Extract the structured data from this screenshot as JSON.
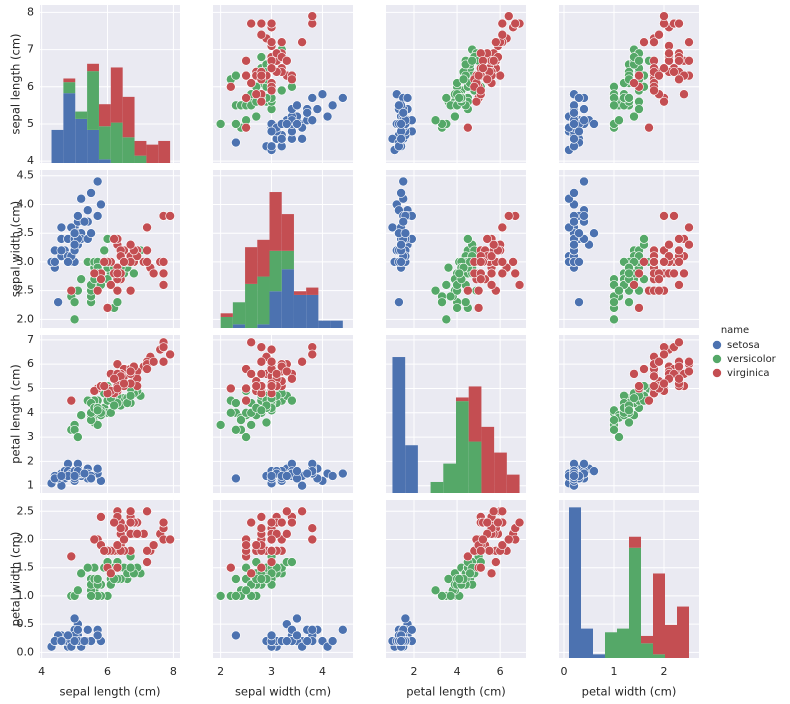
{
  "chart_data": {
    "type": "pairplot",
    "grid": true,
    "legend_title": "name",
    "hist_ylim": [
      0,
      43
    ],
    "axes": [
      {
        "label": "sepal length (cm)",
        "xlim": [
          3.95,
          8.2
        ],
        "ylim": [
          3.95,
          8.2
        ],
        "xticks": [
          4,
          6,
          8
        ],
        "yticks": [
          4,
          5,
          6,
          7,
          8
        ],
        "bins": [
          4.3,
          4.66,
          5.02,
          5.38,
          5.74,
          6.1,
          6.46,
          6.82,
          7.18,
          7.54,
          7.9
        ]
      },
      {
        "label": "sepal width (cm)",
        "xlim": [
          1.85,
          4.6
        ],
        "ylim": [
          1.85,
          4.6
        ],
        "xticks": [
          2,
          3,
          4
        ],
        "yticks": [
          {
            "value": 2,
            "label": "2.0"
          },
          2.5,
          {
            "value": 3,
            "label": "3.0"
          },
          3.5,
          {
            "value": 4,
            "label": "4.0"
          },
          4.5
        ],
        "bins": [
          2.0,
          2.24,
          2.48,
          2.72,
          2.96,
          3.2,
          3.44,
          3.68,
          3.92,
          4.16,
          4.4
        ]
      },
      {
        "label": "petal length (cm)",
        "xlim": [
          0.7,
          7.2
        ],
        "ylim": [
          0.7,
          7.2
        ],
        "xticks": [
          2,
          4,
          6
        ],
        "yticks": [
          1,
          2,
          3,
          4,
          5,
          6,
          7
        ],
        "bins": [
          1.0,
          1.59,
          2.18,
          2.77,
          3.36,
          3.95,
          4.54,
          5.13,
          5.72,
          6.31,
          6.9
        ]
      },
      {
        "label": "petal width (cm)",
        "xlim": [
          -0.1,
          2.7
        ],
        "ylim": [
          -0.1,
          2.7
        ],
        "xticks": [
          0,
          1,
          2
        ],
        "yticks": [
          {
            "value": 0,
            "label": "0.0"
          },
          0.5,
          {
            "value": 1,
            "label": "1.0"
          },
          1.5,
          {
            "value": 2,
            "label": "2.0"
          },
          2.5
        ],
        "bins": [
          0.1,
          0.34,
          0.58,
          0.82,
          1.06,
          1.3,
          1.54,
          1.78,
          2.02,
          2.26,
          2.5
        ]
      }
    ],
    "series": [
      {
        "name": "setosa",
        "color": "#4c72b0",
        "values": [
          [
            5.1,
            4.9,
            4.7,
            4.6,
            5.0,
            5.4,
            4.6,
            5.0,
            4.4,
            4.9,
            5.4,
            4.8,
            4.8,
            4.3,
            5.8,
            5.7,
            5.4,
            5.1,
            5.7,
            5.1,
            5.4,
            5.1,
            4.6,
            5.1,
            4.8,
            5.0,
            5.0,
            5.2,
            5.2,
            4.7,
            4.8,
            5.4,
            5.2,
            5.5,
            4.9,
            5.0,
            5.5,
            4.9,
            4.4,
            5.1,
            5.0,
            4.5,
            4.4,
            5.0,
            5.1,
            4.8,
            5.1,
            4.6,
            5.3,
            5.0
          ],
          [
            3.5,
            3.0,
            3.2,
            3.1,
            3.6,
            3.9,
            3.4,
            3.4,
            2.9,
            3.1,
            3.7,
            3.4,
            3.0,
            3.0,
            4.0,
            4.4,
            3.9,
            3.5,
            3.8,
            3.8,
            3.4,
            3.7,
            3.6,
            3.3,
            3.4,
            3.0,
            3.4,
            3.5,
            3.4,
            3.2,
            3.1,
            3.4,
            4.1,
            4.2,
            3.1,
            3.2,
            3.5,
            3.6,
            3.0,
            3.4,
            3.5,
            2.3,
            3.2,
            3.5,
            3.8,
            3.0,
            3.8,
            3.2,
            3.7,
            3.3
          ],
          [
            1.4,
            1.4,
            1.3,
            1.5,
            1.4,
            1.7,
            1.4,
            1.5,
            1.4,
            1.5,
            1.5,
            1.6,
            1.4,
            1.1,
            1.2,
            1.5,
            1.3,
            1.4,
            1.7,
            1.5,
            1.7,
            1.5,
            1.0,
            1.7,
            1.9,
            1.6,
            1.6,
            1.5,
            1.4,
            1.6,
            1.6,
            1.5,
            1.5,
            1.4,
            1.5,
            1.2,
            1.3,
            1.4,
            1.3,
            1.5,
            1.3,
            1.3,
            1.3,
            1.6,
            1.9,
            1.4,
            1.6,
            1.4,
            1.5,
            1.4
          ],
          [
            0.2,
            0.2,
            0.2,
            0.2,
            0.2,
            0.4,
            0.3,
            0.2,
            0.2,
            0.1,
            0.2,
            0.2,
            0.1,
            0.1,
            0.2,
            0.4,
            0.4,
            0.3,
            0.3,
            0.3,
            0.2,
            0.4,
            0.2,
            0.5,
            0.2,
            0.2,
            0.4,
            0.2,
            0.2,
            0.2,
            0.2,
            0.4,
            0.1,
            0.2,
            0.2,
            0.2,
            0.2,
            0.1,
            0.2,
            0.2,
            0.3,
            0.3,
            0.2,
            0.6,
            0.4,
            0.3,
            0.2,
            0.2,
            0.2,
            0.2
          ]
        ],
        "counts": [
          [
            9,
            19,
            12,
            9,
            1,
            0,
            0,
            0,
            0,
            0
          ],
          [
            0,
            1,
            0,
            1,
            10,
            16,
            9,
            9,
            2,
            2
          ],
          [
            37,
            13,
            0,
            0,
            0,
            0,
            0,
            0,
            0,
            0
          ],
          [
            41,
            8,
            1,
            0,
            0,
            0,
            0,
            0,
            0,
            0
          ]
        ]
      },
      {
        "name": "versicolor",
        "color": "#55a868",
        "values": [
          [
            7.0,
            6.4,
            6.9,
            5.5,
            6.5,
            5.7,
            6.3,
            4.9,
            6.6,
            5.2,
            5.0,
            5.9,
            6.0,
            6.1,
            5.6,
            6.7,
            5.6,
            5.8,
            6.2,
            5.6,
            5.9,
            6.1,
            6.3,
            6.1,
            6.4,
            6.6,
            6.8,
            6.7,
            6.0,
            5.7,
            5.5,
            5.5,
            5.8,
            6.0,
            5.4,
            6.0,
            6.7,
            6.3,
            5.6,
            5.5,
            5.5,
            6.1,
            5.8,
            5.0,
            5.6,
            5.7,
            5.7,
            6.2,
            5.1,
            5.7
          ],
          [
            3.2,
            3.2,
            3.1,
            2.3,
            2.8,
            2.8,
            3.3,
            2.4,
            2.9,
            2.7,
            2.0,
            3.0,
            2.2,
            2.9,
            2.9,
            3.1,
            3.0,
            2.7,
            2.2,
            2.5,
            3.2,
            2.8,
            2.5,
            2.8,
            2.9,
            3.0,
            2.8,
            3.0,
            2.9,
            2.6,
            2.4,
            2.4,
            2.7,
            2.7,
            3.0,
            3.4,
            3.1,
            2.3,
            3.0,
            2.5,
            2.6,
            3.0,
            2.6,
            2.3,
            2.7,
            3.0,
            2.9,
            2.9,
            2.5,
            2.8
          ],
          [
            4.7,
            4.5,
            4.9,
            4.0,
            4.6,
            4.5,
            4.7,
            3.3,
            4.6,
            3.9,
            3.5,
            4.2,
            4.0,
            4.7,
            3.6,
            4.4,
            4.5,
            4.1,
            4.5,
            3.9,
            4.8,
            4.0,
            4.9,
            4.7,
            4.3,
            4.4,
            4.8,
            5.0,
            4.5,
            3.5,
            3.8,
            3.7,
            3.9,
            5.1,
            4.5,
            4.5,
            4.7,
            4.4,
            4.1,
            4.0,
            4.4,
            4.6,
            4.0,
            3.3,
            4.2,
            4.2,
            4.2,
            4.3,
            3.0,
            4.1
          ],
          [
            1.4,
            1.5,
            1.5,
            1.3,
            1.5,
            1.3,
            1.6,
            1.0,
            1.3,
            1.4,
            1.0,
            1.5,
            1.0,
            1.4,
            1.3,
            1.4,
            1.5,
            1.0,
            1.5,
            1.1,
            1.8,
            1.3,
            1.5,
            1.2,
            1.3,
            1.4,
            1.4,
            1.7,
            1.5,
            1.0,
            1.1,
            1.0,
            1.2,
            1.6,
            1.5,
            1.6,
            1.5,
            1.3,
            1.3,
            1.3,
            1.2,
            1.4,
            1.2,
            1.0,
            1.3,
            1.2,
            1.3,
            1.3,
            1.1,
            1.3
          ]
        ],
        "counts": [
          [
            0,
            3,
            2,
            16,
            9,
            11,
            7,
            2,
            0,
            0
          ],
          [
            3,
            6,
            12,
            13,
            11,
            5,
            0,
            0,
            0,
            0
          ],
          [
            0,
            0,
            0,
            3,
            8,
            25,
            14,
            0,
            0,
            0
          ],
          [
            0,
            0,
            0,
            7,
            8,
            30,
            4,
            1,
            0,
            0
          ]
        ]
      },
      {
        "name": "virginica",
        "color": "#c44e52",
        "values": [
          [
            6.3,
            5.8,
            7.1,
            6.3,
            6.5,
            7.6,
            4.9,
            7.3,
            6.7,
            7.2,
            6.5,
            6.4,
            6.8,
            5.7,
            5.8,
            6.4,
            6.5,
            7.7,
            7.7,
            6.0,
            6.9,
            5.6,
            7.7,
            6.3,
            6.7,
            7.2,
            6.2,
            6.1,
            6.4,
            7.2,
            7.4,
            7.9,
            6.4,
            6.3,
            6.1,
            7.7,
            6.3,
            6.4,
            6.0,
            6.9,
            6.7,
            6.9,
            5.8,
            6.8,
            6.7,
            6.7,
            6.3,
            6.5,
            6.2,
            5.9
          ],
          [
            3.3,
            2.7,
            3.0,
            2.9,
            3.0,
            3.0,
            2.5,
            2.9,
            2.5,
            3.6,
            3.2,
            2.7,
            3.0,
            2.5,
            2.8,
            3.2,
            3.0,
            3.8,
            2.6,
            2.2,
            3.2,
            2.8,
            2.8,
            2.7,
            3.3,
            3.2,
            2.8,
            3.0,
            2.8,
            3.0,
            2.8,
            3.8,
            2.8,
            2.8,
            2.6,
            3.0,
            3.4,
            3.1,
            3.0,
            3.1,
            3.1,
            3.1,
            2.7,
            3.2,
            3.3,
            3.0,
            2.5,
            3.0,
            3.4,
            3.0
          ],
          [
            6.0,
            5.1,
            5.9,
            5.6,
            5.8,
            6.6,
            4.5,
            6.3,
            5.8,
            6.1,
            5.1,
            5.3,
            5.5,
            5.0,
            5.1,
            5.3,
            5.5,
            6.7,
            6.9,
            5.0,
            5.7,
            4.9,
            6.7,
            4.9,
            5.7,
            6.0,
            4.8,
            4.9,
            5.6,
            5.8,
            6.1,
            6.4,
            5.6,
            5.1,
            5.6,
            6.1,
            5.6,
            5.5,
            4.8,
            5.4,
            5.6,
            5.1,
            5.1,
            5.9,
            5.7,
            5.2,
            5.0,
            5.2,
            5.4,
            5.1
          ],
          [
            2.5,
            1.9,
            2.1,
            1.8,
            2.2,
            2.1,
            1.7,
            1.8,
            1.8,
            2.5,
            2.0,
            1.9,
            2.1,
            2.0,
            2.4,
            2.3,
            1.8,
            2.2,
            2.3,
            1.5,
            2.3,
            2.0,
            2.0,
            1.8,
            2.1,
            1.8,
            1.8,
            1.8,
            2.1,
            1.6,
            1.9,
            2.0,
            2.2,
            1.5,
            1.4,
            2.3,
            2.4,
            1.8,
            1.8,
            2.1,
            2.4,
            2.3,
            1.9,
            2.3,
            2.5,
            2.3,
            1.9,
            2.0,
            2.3,
            1.8
          ]
        ],
        "counts": [
          [
            0,
            1,
            0,
            2,
            6,
            15,
            11,
            4,
            5,
            6
          ],
          [
            1,
            0,
            10,
            10,
            16,
            10,
            1,
            2,
            0,
            0
          ],
          [
            0,
            0,
            0,
            0,
            0,
            1,
            15,
            18,
            11,
            5
          ],
          [
            0,
            0,
            0,
            0,
            0,
            3,
            2,
            22,
            9,
            14
          ]
        ]
      }
    ]
  }
}
